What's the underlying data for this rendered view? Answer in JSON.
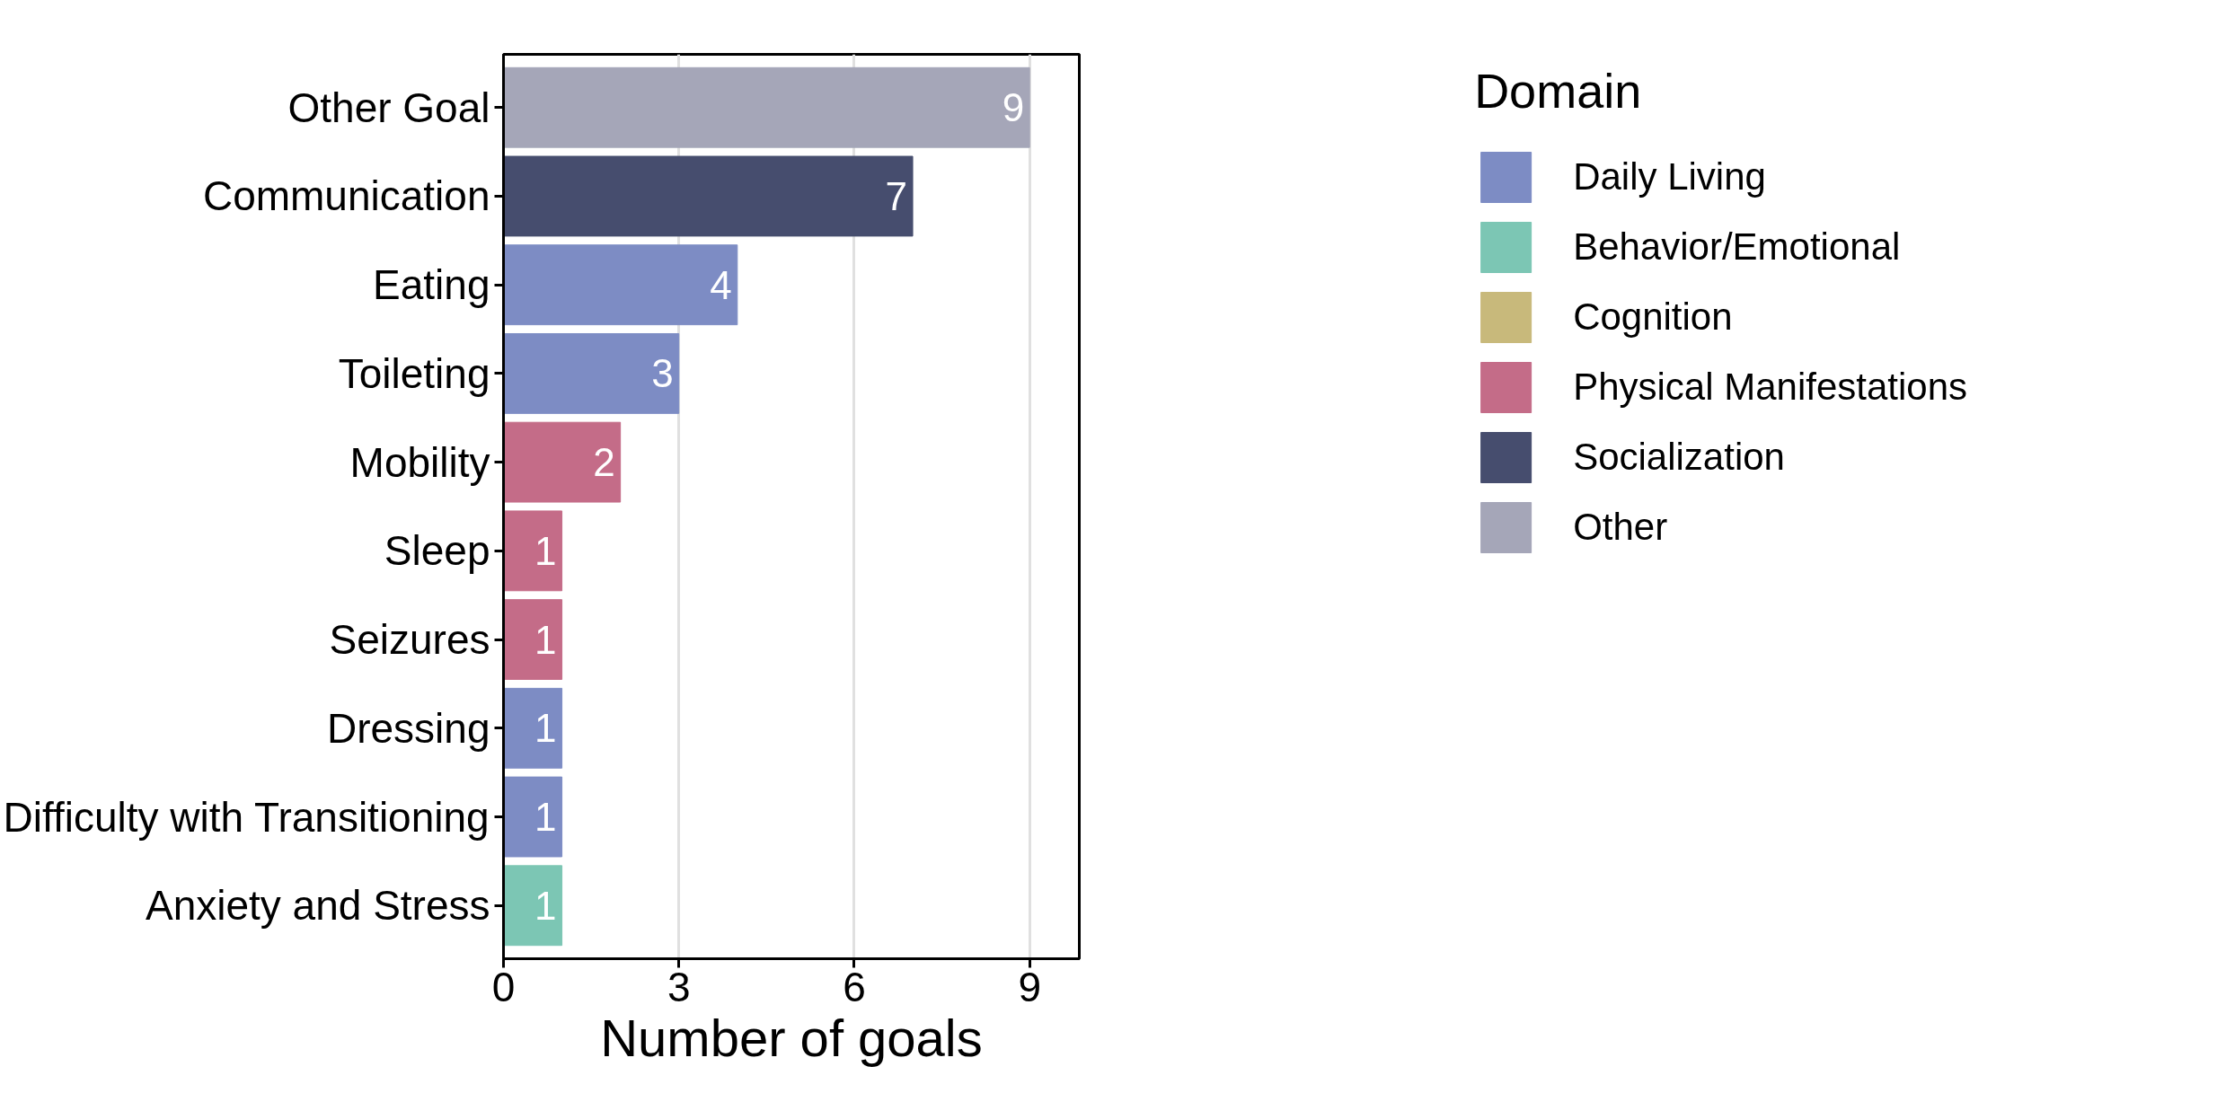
{
  "chart_data": {
    "type": "bar",
    "orientation": "horizontal",
    "xlabel": "Number of goals",
    "legend_title": "Domain",
    "categories": [
      "Other Goal",
      "Communication",
      "Eating",
      "Toileting",
      "Mobility",
      "Sleep",
      "Seizures",
      "Dressing",
      "Difficulty with Transitioning",
      "Anxiety and Stress"
    ],
    "series": [
      {
        "name": "Daily Living",
        "color": "#7d8cc4",
        "values": [
          null,
          null,
          4,
          3,
          null,
          null,
          null,
          1,
          1,
          null
        ]
      },
      {
        "name": "Behavior/Emotional",
        "color": "#7cc6b4",
        "values": [
          null,
          null,
          null,
          null,
          null,
          null,
          null,
          null,
          null,
          1
        ]
      },
      {
        "name": "Cognition",
        "color": "#c8b97b",
        "values": [
          null,
          null,
          null,
          null,
          null,
          null,
          null,
          null,
          null,
          null
        ]
      },
      {
        "name": "Physical Manifestations",
        "color": "#c46c88",
        "values": [
          null,
          null,
          null,
          null,
          2,
          1,
          1,
          null,
          null,
          null
        ]
      },
      {
        "name": "Socialization",
        "color": "#464d6e",
        "values": [
          null,
          7,
          null,
          null,
          null,
          null,
          null,
          null,
          null,
          null
        ]
      },
      {
        "name": "Other",
        "color": "#a5a6b8",
        "values": [
          9,
          null,
          null,
          null,
          null,
          null,
          null,
          null,
          null,
          null
        ]
      }
    ],
    "xlim": [
      0,
      9.85
    ],
    "xticks": [
      0,
      3,
      6,
      9
    ],
    "grid": "x",
    "legend": "right",
    "data_labels": true
  }
}
